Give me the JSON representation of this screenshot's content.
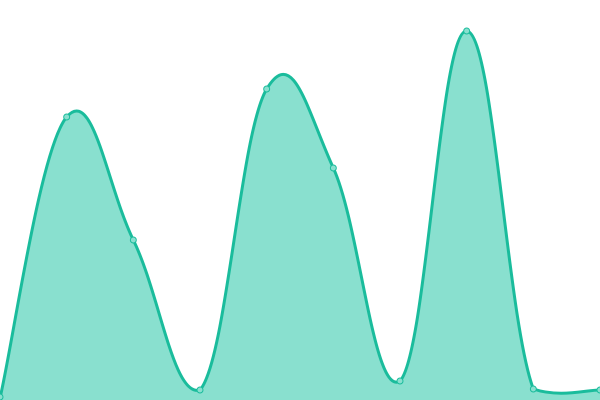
{
  "chart_data": {
    "type": "area",
    "x": [
      0,
      1,
      2,
      3,
      4,
      5,
      6,
      7,
      8,
      9
    ],
    "values": [
      2,
      283,
      160,
      10,
      311,
      232,
      19,
      369,
      11,
      10
    ],
    "ylim": [
      0,
      400
    ],
    "grid": false,
    "axes": false,
    "smooth": true,
    "colors": {
      "line": "#1abc9c",
      "fill": "#89e0cf",
      "marker_fill": "#89e0cf"
    }
  }
}
